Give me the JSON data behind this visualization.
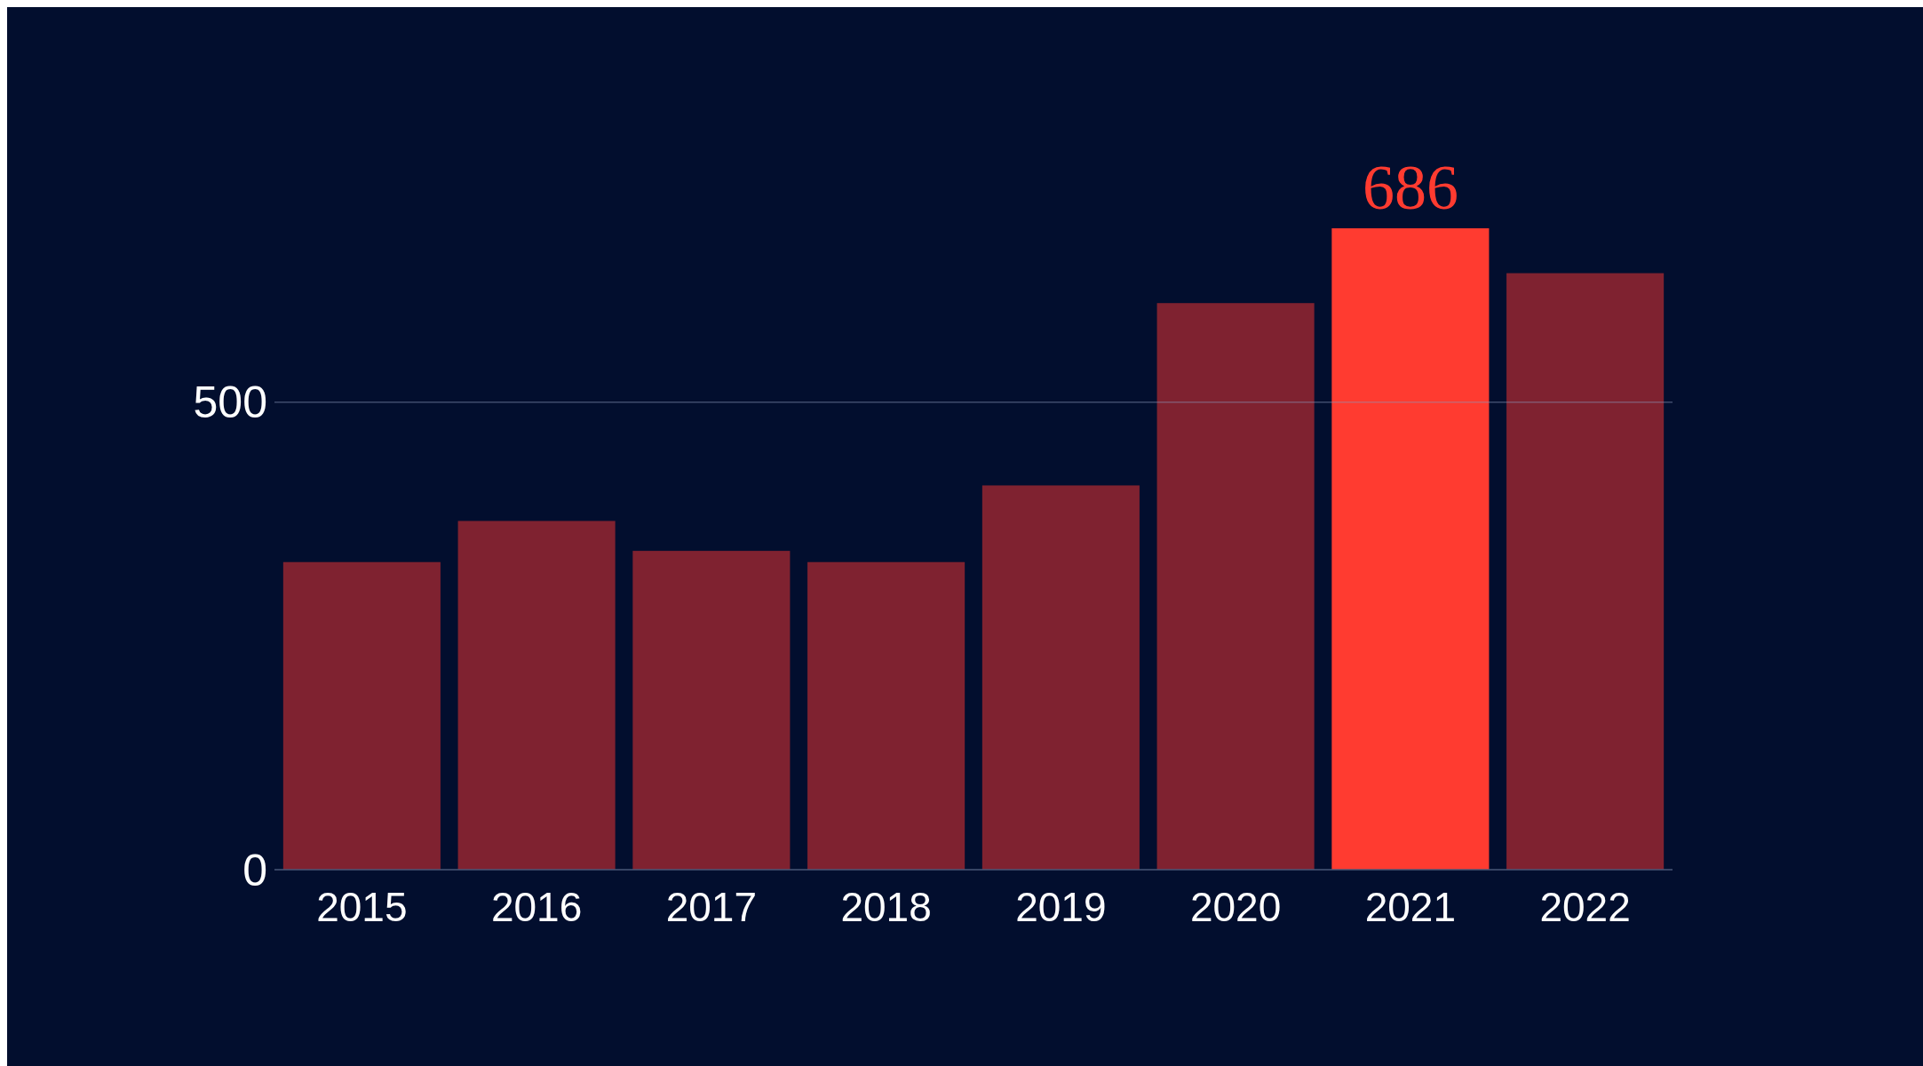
{
  "chart_data": {
    "type": "bar",
    "categories": [
      "2015",
      "2016",
      "2017",
      "2018",
      "2019",
      "2020",
      "2021",
      "2022"
    ],
    "values": [
      329,
      373,
      341,
      329,
      411,
      606,
      686,
      638
    ],
    "colors": [
      "#7f2230",
      "#7f2230",
      "#7f2230",
      "#7f2230",
      "#7f2230",
      "#7f2230",
      "#ff3b30",
      "#7f2230"
    ],
    "value_labels": [
      null,
      null,
      null,
      null,
      null,
      null,
      "686",
      null
    ],
    "ylim": [
      0,
      686
    ],
    "yticks": [
      0,
      500
    ],
    "ref_lines": [
      {
        "axis": "y",
        "value": 500,
        "color": "#8a97b7"
      }
    ]
  }
}
